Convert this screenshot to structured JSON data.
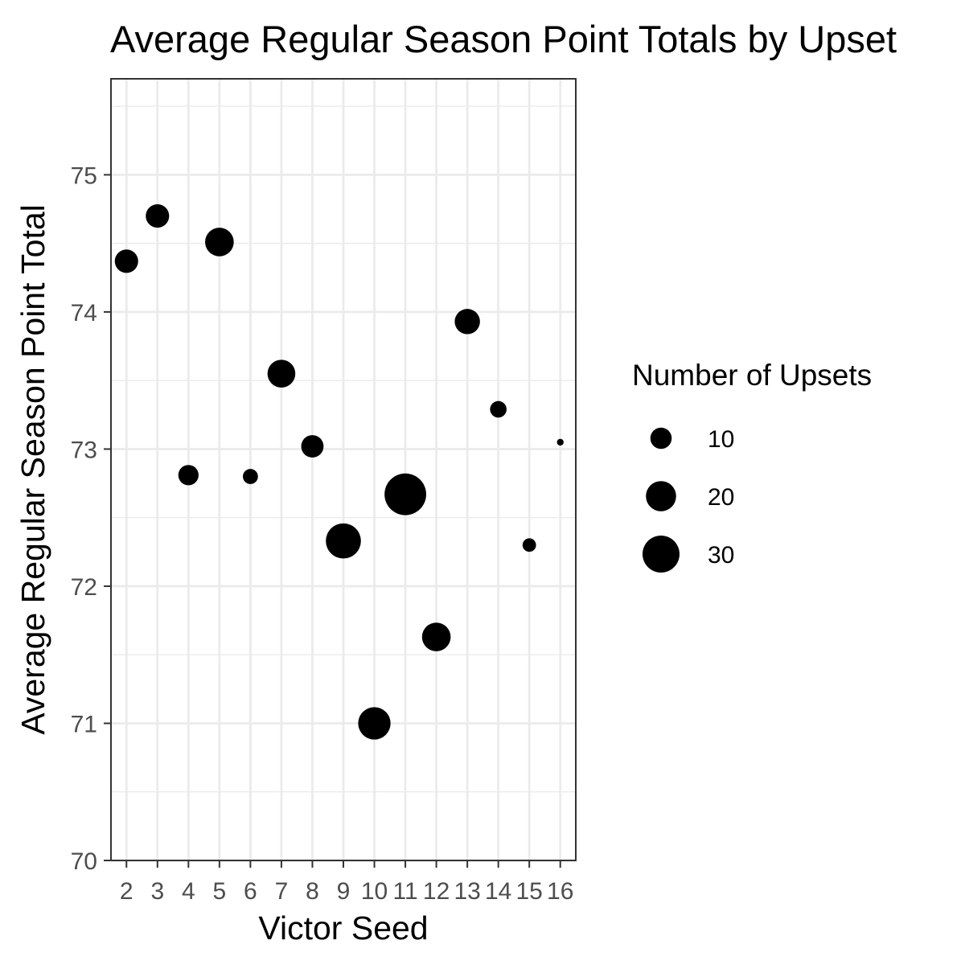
{
  "chart_data": {
    "type": "scatter",
    "title": "Average Regular Season Point Totals by Upset",
    "xlabel": "Victor Seed",
    "ylabel": "Average Regular Season Point Total",
    "x": [
      2,
      3,
      4,
      5,
      6,
      7,
      8,
      9,
      10,
      11,
      12,
      13,
      14,
      15,
      16
    ],
    "x_tick_labels": [
      "2",
      "3",
      "4",
      "5",
      "6",
      "7",
      "8",
      "9",
      "10",
      "11",
      "12",
      "13",
      "14",
      "15",
      "16"
    ],
    "xlim": [
      1.5,
      16.5
    ],
    "ylim": [
      70,
      75.7
    ],
    "y_ticks": [
      70,
      71,
      72,
      73,
      74,
      75
    ],
    "y_tick_labels": [
      "70",
      "71",
      "72",
      "73",
      "74",
      "75"
    ],
    "grid": true,
    "legend_placement": "right",
    "series": [
      {
        "values": [
          74.37,
          74.7,
          72.81,
          74.51,
          72.8,
          73.55,
          73.02,
          72.33,
          71.0,
          72.67,
          71.63,
          73.93,
          73.29,
          72.3,
          73.05
        ],
        "upsets": [
          12,
          12,
          9,
          18,
          5,
          17,
          11,
          27,
          23,
          38,
          18,
          14,
          6,
          4,
          1
        ]
      }
    ],
    "size_legend": {
      "title": "Number of Upsets",
      "values": [
        10,
        20,
        30
      ],
      "labels": [
        "10",
        "20",
        "30"
      ]
    },
    "colors": {
      "point": "#000000",
      "grid": "#ebebeb",
      "panel_border": "#333333",
      "tick_text": "#4d4d4d"
    }
  }
}
